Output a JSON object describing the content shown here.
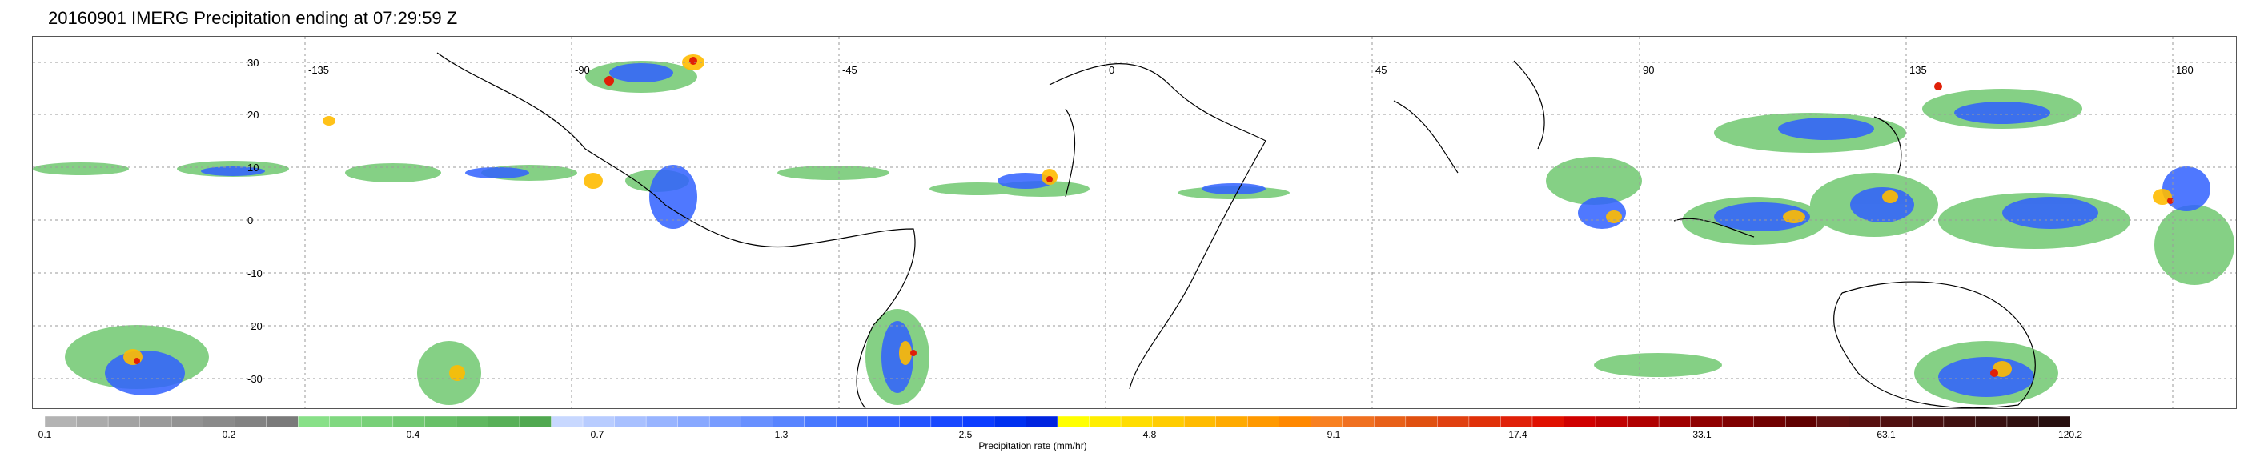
{
  "title": "20160901 IMERG Precipitation ending at 07:29:59 Z",
  "map": {
    "longitude_labels": [
      "-135",
      "-90",
      "-45",
      "0",
      "45",
      "90",
      "135",
      "180"
    ],
    "latitude_labels": [
      "30",
      "20",
      "10",
      "0",
      "-10",
      "-20",
      "-30"
    ],
    "grid_style": "dotted"
  },
  "colorbar": {
    "title": "Precipitation rate (mm/hr)",
    "tick_labels": [
      "0.1",
      "0.2",
      "0.4",
      "0.7",
      "1.3",
      "2.5",
      "4.8",
      "9.1",
      "17.4",
      "33.1",
      "63.1",
      "120.2"
    ],
    "colors": [
      "#b3b3b3",
      "#aaaaaa",
      "#a2a2a2",
      "#9a9a9a",
      "#929292",
      "#8a8a8a",
      "#828282",
      "#7a7a7a",
      "#88e088",
      "#80d880",
      "#78d078",
      "#70c870",
      "#68c068",
      "#60b860",
      "#58b058",
      "#50a850",
      "#c8d8ff",
      "#b8ccff",
      "#a8c0ff",
      "#98b4ff",
      "#88a8ff",
      "#789cff",
      "#6890ff",
      "#5884ff",
      "#4878ff",
      "#3c6cff",
      "#3060ff",
      "#2454ff",
      "#1848ff",
      "#0c3cff",
      "#0030f0",
      "#0024e0",
      "#ffff00",
      "#ffee00",
      "#ffdd00",
      "#ffcc00",
      "#ffbb00",
      "#ffaa00",
      "#ff9900",
      "#ff8800",
      "#f88020",
      "#f07020",
      "#e86018",
      "#e05010",
      "#e04010",
      "#e03008",
      "#e02008",
      "#e01000",
      "#d00000",
      "#c00000",
      "#b00000",
      "#a00000",
      "#900000",
      "#800000",
      "#700000",
      "#600000",
      "#601010",
      "#581010",
      "#501010",
      "#481010",
      "#401010",
      "#381010",
      "#301010",
      "#281010"
    ]
  }
}
